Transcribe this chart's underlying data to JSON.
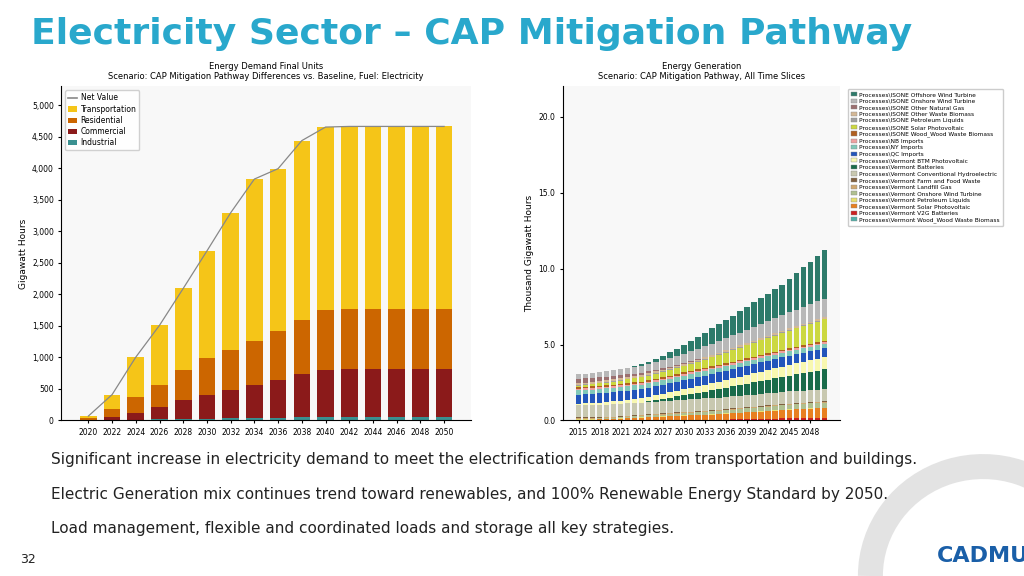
{
  "title": "Electricity Sector – CAP Mitigation Pathway",
  "title_color": "#29a8cc",
  "title_fontsize": 26,
  "background_color": "#ffffff",
  "chart1": {
    "title": "Energy Demand Final Units",
    "subtitle": "Scenario: CAP Mitigation Pathway Differences vs. Baseline, Fuel: Electricity",
    "ylabel": "Gigawatt Hours",
    "ylim": [
      0,
      5300
    ],
    "yticks": [
      0,
      500,
      1000,
      1500,
      2000,
      2500,
      3000,
      3500,
      4000,
      4500,
      5000
    ],
    "years": [
      2020,
      2022,
      2024,
      2026,
      2028,
      2030,
      2032,
      2034,
      2036,
      2038,
      2040,
      2042,
      2044,
      2046,
      2048,
      2050
    ],
    "industrial": [
      5,
      10,
      15,
      20,
      25,
      30,
      35,
      40,
      45,
      50,
      55,
      55,
      55,
      55,
      55,
      55
    ],
    "commercial": [
      10,
      50,
      100,
      200,
      300,
      380,
      450,
      520,
      600,
      680,
      750,
      760,
      760,
      760,
      760,
      760
    ],
    "residential": [
      30,
      130,
      250,
      350,
      480,
      580,
      640,
      700,
      780,
      870,
      950,
      950,
      950,
      950,
      950,
      950
    ],
    "transportation": [
      25,
      220,
      640,
      940,
      1290,
      1700,
      2170,
      2570,
      2570,
      2840,
      2900,
      2900,
      2900,
      2900,
      2900,
      2900
    ],
    "net_value": [
      70,
      410,
      1005,
      1510,
      2095,
      2690,
      3295,
      3830,
      3995,
      4440,
      4655,
      4665,
      4665,
      4665,
      4665,
      4665
    ],
    "colors": {
      "industrial": "#3a9090",
      "commercial": "#8b1a1a",
      "residential": "#cc6600",
      "transportation": "#f5c518"
    }
  },
  "chart2": {
    "title": "Energy Generation",
    "subtitle": "Scenario: CAP Mitigation Pathway, All Time Slices",
    "ylabel": "Thousand Gigawatt Hours",
    "ylim": [
      0,
      22
    ],
    "yticks": [
      0.0,
      5.0,
      10.0,
      15.0,
      20.0
    ],
    "years": [
      2015,
      2016,
      2017,
      2018,
      2019,
      2020,
      2021,
      2022,
      2023,
      2024,
      2025,
      2026,
      2027,
      2028,
      2029,
      2030,
      2031,
      2032,
      2033,
      2034,
      2035,
      2036,
      2037,
      2038,
      2039,
      2040,
      2041,
      2042,
      2043,
      2044,
      2045,
      2046,
      2047,
      2048,
      2049,
      2050
    ],
    "layers": {
      "VT_Wood": [
        0.05,
        0.05,
        0.05,
        0.05,
        0.05,
        0.05,
        0.05,
        0.05,
        0.05,
        0.05,
        0.05,
        0.05,
        0.05,
        0.05,
        0.05,
        0.05,
        0.05,
        0.05,
        0.05,
        0.05,
        0.05,
        0.05,
        0.05,
        0.05,
        0.05,
        0.05,
        0.05,
        0.05,
        0.05,
        0.05,
        0.05,
        0.05,
        0.05,
        0.05,
        0.05,
        0.05
      ],
      "VT_V2G": [
        0.0,
        0.0,
        0.0,
        0.0,
        0.0,
        0.0,
        0.0,
        0.0,
        0.0,
        0.0,
        0.0,
        0.0,
        0.0,
        0.0,
        0.0,
        0.0,
        0.0,
        0.0,
        0.0,
        0.0,
        0.0,
        0.01,
        0.02,
        0.03,
        0.04,
        0.05,
        0.06,
        0.07,
        0.08,
        0.09,
        0.1,
        0.1,
        0.1,
        0.1,
        0.1,
        0.1
      ],
      "VT_Solar": [
        0.0,
        0.0,
        0.0,
        0.02,
        0.04,
        0.06,
        0.08,
        0.1,
        0.12,
        0.14,
        0.16,
        0.18,
        0.2,
        0.22,
        0.24,
        0.26,
        0.28,
        0.3,
        0.32,
        0.34,
        0.36,
        0.38,
        0.4,
        0.42,
        0.44,
        0.46,
        0.48,
        0.5,
        0.52,
        0.54,
        0.56,
        0.58,
        0.6,
        0.62,
        0.64,
        0.66
      ],
      "VT_PetLiq": [
        0.02,
        0.02,
        0.02,
        0.02,
        0.02,
        0.02,
        0.02,
        0.02,
        0.02,
        0.02,
        0.02,
        0.02,
        0.02,
        0.02,
        0.02,
        0.02,
        0.02,
        0.02,
        0.02,
        0.02,
        0.02,
        0.02,
        0.02,
        0.02,
        0.02,
        0.02,
        0.02,
        0.02,
        0.02,
        0.02,
        0.02,
        0.02,
        0.02,
        0.02,
        0.02,
        0.02
      ],
      "VT_Onshore": [
        0.05,
        0.05,
        0.05,
        0.05,
        0.05,
        0.05,
        0.06,
        0.07,
        0.08,
        0.09,
        0.1,
        0.11,
        0.12,
        0.13,
        0.14,
        0.15,
        0.16,
        0.17,
        0.18,
        0.19,
        0.2,
        0.21,
        0.22,
        0.23,
        0.24,
        0.25,
        0.26,
        0.27,
        0.28,
        0.29,
        0.3,
        0.31,
        0.32,
        0.33,
        0.34,
        0.35
      ],
      "VT_LandfillGas": [
        0.05,
        0.05,
        0.05,
        0.05,
        0.05,
        0.05,
        0.05,
        0.05,
        0.05,
        0.05,
        0.05,
        0.05,
        0.05,
        0.05,
        0.05,
        0.05,
        0.05,
        0.05,
        0.05,
        0.05,
        0.05,
        0.05,
        0.05,
        0.05,
        0.05,
        0.05,
        0.05,
        0.05,
        0.05,
        0.05,
        0.05,
        0.05,
        0.05,
        0.05,
        0.05,
        0.05
      ],
      "VT_FarmWaste": [
        0.03,
        0.03,
        0.03,
        0.03,
        0.03,
        0.03,
        0.03,
        0.03,
        0.03,
        0.03,
        0.03,
        0.03,
        0.03,
        0.03,
        0.03,
        0.03,
        0.03,
        0.03,
        0.03,
        0.03,
        0.03,
        0.03,
        0.03,
        0.03,
        0.03,
        0.03,
        0.03,
        0.03,
        0.03,
        0.03,
        0.03,
        0.03,
        0.03,
        0.03,
        0.03,
        0.03
      ],
      "VT_Hydro": [
        0.8,
        0.8,
        0.8,
        0.8,
        0.8,
        0.8,
        0.8,
        0.8,
        0.8,
        0.8,
        0.8,
        0.8,
        0.8,
        0.8,
        0.8,
        0.8,
        0.8,
        0.8,
        0.8,
        0.8,
        0.8,
        0.8,
        0.8,
        0.8,
        0.8,
        0.8,
        0.8,
        0.8,
        0.8,
        0.8,
        0.8,
        0.8,
        0.8,
        0.8,
        0.8,
        0.8
      ],
      "VT_Batteries": [
        0.0,
        0.0,
        0.0,
        0.0,
        0.0,
        0.0,
        0.0,
        0.0,
        0.0,
        0.0,
        0.05,
        0.1,
        0.15,
        0.2,
        0.25,
        0.3,
        0.35,
        0.4,
        0.45,
        0.5,
        0.55,
        0.6,
        0.65,
        0.7,
        0.75,
        0.8,
        0.85,
        0.9,
        0.95,
        1.0,
        1.05,
        1.1,
        1.15,
        1.2,
        1.25,
        1.3
      ],
      "VT_BTM_Solar": [
        0.1,
        0.12,
        0.14,
        0.16,
        0.18,
        0.2,
        0.22,
        0.24,
        0.26,
        0.28,
        0.3,
        0.32,
        0.34,
        0.36,
        0.38,
        0.4,
        0.42,
        0.44,
        0.46,
        0.48,
        0.5,
        0.52,
        0.54,
        0.56,
        0.58,
        0.6,
        0.62,
        0.64,
        0.66,
        0.68,
        0.7,
        0.72,
        0.74,
        0.76,
        0.78,
        0.8
      ],
      "QC_Imports": [
        0.6,
        0.6,
        0.6,
        0.6,
        0.6,
        0.6,
        0.6,
        0.6,
        0.6,
        0.6,
        0.6,
        0.6,
        0.6,
        0.6,
        0.6,
        0.6,
        0.6,
        0.6,
        0.6,
        0.6,
        0.6,
        0.6,
        0.6,
        0.6,
        0.6,
        0.6,
        0.6,
        0.6,
        0.6,
        0.6,
        0.6,
        0.6,
        0.6,
        0.6,
        0.6,
        0.6
      ],
      "NY_Imports": [
        0.3,
        0.3,
        0.3,
        0.3,
        0.3,
        0.3,
        0.3,
        0.3,
        0.3,
        0.3,
        0.3,
        0.3,
        0.3,
        0.3,
        0.3,
        0.3,
        0.3,
        0.3,
        0.3,
        0.3,
        0.3,
        0.3,
        0.3,
        0.3,
        0.3,
        0.3,
        0.3,
        0.3,
        0.3,
        0.3,
        0.3,
        0.3,
        0.3,
        0.3,
        0.3,
        0.3
      ],
      "NB_Imports": [
        0.1,
        0.1,
        0.1,
        0.1,
        0.1,
        0.1,
        0.1,
        0.1,
        0.1,
        0.1,
        0.1,
        0.1,
        0.1,
        0.1,
        0.1,
        0.1,
        0.1,
        0.1,
        0.1,
        0.1,
        0.1,
        0.1,
        0.1,
        0.1,
        0.1,
        0.1,
        0.1,
        0.1,
        0.1,
        0.1,
        0.1,
        0.1,
        0.1,
        0.1,
        0.1,
        0.1
      ],
      "ISONE_Wood": [
        0.1,
        0.1,
        0.1,
        0.1,
        0.1,
        0.1,
        0.1,
        0.1,
        0.1,
        0.1,
        0.1,
        0.1,
        0.1,
        0.1,
        0.1,
        0.1,
        0.1,
        0.1,
        0.1,
        0.1,
        0.1,
        0.1,
        0.1,
        0.1,
        0.1,
        0.1,
        0.1,
        0.1,
        0.1,
        0.1,
        0.1,
        0.1,
        0.1,
        0.1,
        0.1,
        0.1
      ],
      "ISONE_Solar": [
        0.1,
        0.12,
        0.14,
        0.16,
        0.18,
        0.2,
        0.22,
        0.24,
        0.26,
        0.28,
        0.3,
        0.32,
        0.34,
        0.36,
        0.38,
        0.4,
        0.45,
        0.5,
        0.55,
        0.6,
        0.65,
        0.7,
        0.75,
        0.8,
        0.85,
        0.9,
        0.95,
        1.0,
        1.05,
        1.1,
        1.15,
        1.2,
        1.25,
        1.3,
        1.35,
        1.4
      ],
      "ISONE_PetLiq": [
        0.05,
        0.05,
        0.05,
        0.05,
        0.05,
        0.05,
        0.05,
        0.05,
        0.05,
        0.05,
        0.05,
        0.05,
        0.05,
        0.05,
        0.05,
        0.05,
        0.05,
        0.05,
        0.05,
        0.05,
        0.05,
        0.05,
        0.05,
        0.05,
        0.05,
        0.05,
        0.05,
        0.05,
        0.05,
        0.05,
        0.05,
        0.05,
        0.05,
        0.05,
        0.05,
        0.05
      ],
      "ISONE_OtherBio": [
        0.1,
        0.1,
        0.1,
        0.1,
        0.1,
        0.1,
        0.1,
        0.1,
        0.1,
        0.1,
        0.1,
        0.1,
        0.1,
        0.1,
        0.1,
        0.1,
        0.1,
        0.1,
        0.1,
        0.1,
        0.1,
        0.1,
        0.1,
        0.1,
        0.1,
        0.1,
        0.1,
        0.1,
        0.1,
        0.1,
        0.1,
        0.1,
        0.1,
        0.1,
        0.1,
        0.1
      ],
      "ISONE_NatGas": [
        0.3,
        0.3,
        0.28,
        0.26,
        0.24,
        0.22,
        0.2,
        0.18,
        0.16,
        0.14,
        0.12,
        0.1,
        0.09,
        0.08,
        0.07,
        0.06,
        0.05,
        0.04,
        0.03,
        0.02,
        0.01,
        0.0,
        0.0,
        0.0,
        0.0,
        0.0,
        0.0,
        0.0,
        0.0,
        0.0,
        0.0,
        0.0,
        0.0,
        0.0,
        0.0,
        0.0
      ],
      "ISONE_Onshore": [
        0.3,
        0.3,
        0.32,
        0.34,
        0.36,
        0.38,
        0.4,
        0.42,
        0.44,
        0.46,
        0.48,
        0.5,
        0.52,
        0.55,
        0.58,
        0.61,
        0.64,
        0.67,
        0.7,
        0.73,
        0.76,
        0.79,
        0.82,
        0.85,
        0.88,
        0.91,
        0.94,
        0.97,
        1.0,
        1.03,
        1.06,
        1.09,
        1.12,
        1.15,
        1.18,
        1.21
      ],
      "ISONE_Offshore": [
        0.0,
        0.0,
        0.0,
        0.0,
        0.0,
        0.0,
        0.0,
        0.0,
        0.05,
        0.1,
        0.15,
        0.2,
        0.3,
        0.4,
        0.5,
        0.6,
        0.7,
        0.8,
        0.9,
        1.0,
        1.1,
        1.2,
        1.3,
        1.4,
        1.5,
        1.6,
        1.7,
        1.8,
        1.9,
        2.0,
        2.2,
        2.4,
        2.6,
        2.8,
        3.0,
        3.2
      ]
    },
    "colors": {
      "ISONE_Offshore": "#2d7a6a",
      "ISONE_Onshore": "#b8b8b8",
      "ISONE_NatGas": "#9b7070",
      "ISONE_OtherBio": "#d4b896",
      "ISONE_PetLiq": "#a0a0a0",
      "ISONE_Solar": "#ccd840",
      "ISONE_Wood": "#b06020",
      "NB_Imports": "#f0a0a0",
      "NY_Imports": "#80c8b8",
      "QC_Imports": "#2255bb",
      "VT_BTM_Solar": "#f8f8b0",
      "VT_Batteries": "#1a6b4a",
      "VT_Hydro": "#c8c8b0",
      "VT_FarmWaste": "#806040",
      "VT_LandfillGas": "#d0a870",
      "VT_Onshore": "#b0c090",
      "VT_PetLiq": "#e8e070",
      "VT_Solar": "#e88020",
      "VT_V2G": "#cc2020",
      "VT_Wood": "#50b0a8"
    },
    "legend_labels": [
      "Processes\\ISONE Offshore Wind Turbine",
      "Processes\\ISONE Onshore Wind Turbine",
      "Processes\\ISONE Other Natural Gas",
      "Processes\\ISONE Other Waste Biomass",
      "Processes\\ISONE Petroleum Liquids",
      "Processes\\ISONE Solar Photovoltaic",
      "Processes\\ISONE Wood_Wood Waste Biomass",
      "Processes\\NB Imports",
      "Processes\\NY Imports",
      "Processes\\QC Imports",
      "Processes\\Vermont BTM Photovoltaic",
      "Processes\\Vermont Batteries",
      "Processes\\Vermont Conventional Hydroelectric",
      "Processes\\Vermont Farm and Food Waste",
      "Processes\\Vermont Landfill Gas",
      "Processes\\Vermont Onshore Wind Turbine",
      "Processes\\Vermont Petroleum Liquids",
      "Processes\\Vermont Solar Photovoltaic",
      "Processes\\Vermont V2G Batteries",
      "Processes\\Vermont Wood_Wood Waste Biomass"
    ]
  },
  "bullets": [
    "Significant increase in electricity demand to meet the electrification demands from transportation and buildings.",
    "Electric Generation mix continues trend toward renewables, and 100% Renewable Energy Standard by 2050.",
    "Load management, flexible and coordinated loads and storage all key strategies."
  ],
  "bullet_fontsize": 11,
  "bullet_color": "#222222",
  "page_number": "32",
  "cadmus_color": "#1a5fa8"
}
